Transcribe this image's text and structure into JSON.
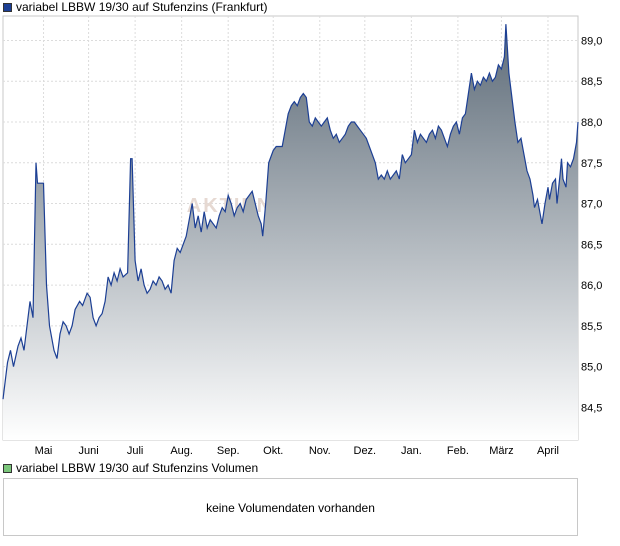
{
  "legend_price": {
    "label": "variabel LBBW 19/30 auf Stufenzins (Frankfurt)",
    "color": "#1c3f94"
  },
  "legend_volume": {
    "label": "variabel LBBW 19/30 auf Stufenzins Volumen",
    "color": "#7bc67b"
  },
  "volume_message": "keine Volumendaten vorhanden",
  "watermark": "AKTIEN",
  "colors": {
    "line": "#1c3f94",
    "fill_top": "#5d6b78",
    "fill_bottom": "#ffffff",
    "grid": "#dcdcdc",
    "frame": "#c8c8c8"
  },
  "chart_data": {
    "type": "area",
    "title": "variabel LBBW 19/30 auf Stufenzins (Frankfurt)",
    "xlabel": "",
    "ylabel": "",
    "ylim": [
      84.1,
      89.3
    ],
    "x_range": [
      0,
      383
    ],
    "grid": true,
    "y_axis_side": "right",
    "y_ticks": [
      {
        "v": 84.5,
        "label": "84,5"
      },
      {
        "v": 85.0,
        "label": "85,0"
      },
      {
        "v": 85.5,
        "label": "85,5"
      },
      {
        "v": 86.0,
        "label": "86,0"
      },
      {
        "v": 86.5,
        "label": "86,5"
      },
      {
        "v": 87.0,
        "label": "87,0"
      },
      {
        "v": 87.5,
        "label": "87,5"
      },
      {
        "v": 88.0,
        "label": "88,0"
      },
      {
        "v": 88.5,
        "label": "88,5"
      },
      {
        "v": 89.0,
        "label": "89,0"
      }
    ],
    "x_ticks": [
      {
        "x": 27,
        "label": "Mai"
      },
      {
        "x": 57,
        "label": "Juni"
      },
      {
        "x": 88,
        "label": "Juli"
      },
      {
        "x": 119,
        "label": "Aug."
      },
      {
        "x": 150,
        "label": "Sep."
      },
      {
        "x": 180,
        "label": "Okt."
      },
      {
        "x": 211,
        "label": "Nov."
      },
      {
        "x": 241,
        "label": "Dez."
      },
      {
        "x": 272,
        "label": "Jan."
      },
      {
        "x": 303,
        "label": "Feb."
      },
      {
        "x": 332,
        "label": "März"
      },
      {
        "x": 363,
        "label": "April"
      }
    ],
    "series": [
      {
        "name": "variabel LBBW 19/30 auf Stufenzins (Frankfurt)",
        "points": [
          [
            0,
            84.6
          ],
          [
            3,
            85.05
          ],
          [
            5,
            85.2
          ],
          [
            7,
            85.0
          ],
          [
            10,
            85.25
          ],
          [
            12,
            85.35
          ],
          [
            14,
            85.2
          ],
          [
            16,
            85.5
          ],
          [
            18,
            85.8
          ],
          [
            20,
            85.6
          ],
          [
            22,
            87.5
          ],
          [
            23,
            87.25
          ],
          [
            27,
            87.25
          ],
          [
            29,
            86.0
          ],
          [
            31,
            85.5
          ],
          [
            34,
            85.2
          ],
          [
            36,
            85.1
          ],
          [
            38,
            85.4
          ],
          [
            40,
            85.55
          ],
          [
            42,
            85.5
          ],
          [
            44,
            85.4
          ],
          [
            46,
            85.5
          ],
          [
            48,
            85.7
          ],
          [
            51,
            85.8
          ],
          [
            53,
            85.75
          ],
          [
            56,
            85.9
          ],
          [
            58,
            85.85
          ],
          [
            60,
            85.6
          ],
          [
            62,
            85.5
          ],
          [
            64,
            85.6
          ],
          [
            66,
            85.65
          ],
          [
            68,
            85.8
          ],
          [
            70,
            86.1
          ],
          [
            72,
            86.0
          ],
          [
            74,
            86.15
          ],
          [
            76,
            86.05
          ],
          [
            78,
            86.2
          ],
          [
            80,
            86.1
          ],
          [
            83,
            86.15
          ],
          [
            85,
            87.55
          ],
          [
            86,
            87.55
          ],
          [
            88,
            86.3
          ],
          [
            90,
            86.05
          ],
          [
            92,
            86.2
          ],
          [
            94,
            86.0
          ],
          [
            96,
            85.9
          ],
          [
            98,
            85.95
          ],
          [
            100,
            86.05
          ],
          [
            102,
            86.0
          ],
          [
            104,
            86.1
          ],
          [
            106,
            86.05
          ],
          [
            108,
            85.95
          ],
          [
            110,
            86.0
          ],
          [
            112,
            85.9
          ],
          [
            114,
            86.3
          ],
          [
            116,
            86.45
          ],
          [
            118,
            86.4
          ],
          [
            120,
            86.5
          ],
          [
            122,
            86.6
          ],
          [
            124,
            86.8
          ],
          [
            126,
            87.0
          ],
          [
            128,
            86.7
          ],
          [
            130,
            86.85
          ],
          [
            132,
            86.65
          ],
          [
            134,
            86.9
          ],
          [
            136,
            86.7
          ],
          [
            138,
            86.8
          ],
          [
            140,
            86.75
          ],
          [
            142,
            86.7
          ],
          [
            144,
            86.85
          ],
          [
            146,
            86.95
          ],
          [
            148,
            86.9
          ],
          [
            150,
            87.1
          ],
          [
            152,
            87.0
          ],
          [
            154,
            86.85
          ],
          [
            156,
            86.95
          ],
          [
            158,
            87.0
          ],
          [
            160,
            86.9
          ],
          [
            162,
            87.05
          ],
          [
            164,
            87.1
          ],
          [
            166,
            87.15
          ],
          [
            168,
            87.0
          ],
          [
            170,
            86.85
          ],
          [
            172,
            86.75
          ],
          [
            173,
            86.6
          ],
          [
            175,
            87.0
          ],
          [
            177,
            87.5
          ],
          [
            180,
            87.65
          ],
          [
            182,
            87.7
          ],
          [
            184,
            87.7
          ],
          [
            186,
            87.7
          ],
          [
            188,
            87.9
          ],
          [
            190,
            88.1
          ],
          [
            192,
            88.2
          ],
          [
            194,
            88.25
          ],
          [
            196,
            88.2
          ],
          [
            198,
            88.3
          ],
          [
            200,
            88.35
          ],
          [
            202,
            88.3
          ],
          [
            204,
            88.0
          ],
          [
            206,
            87.95
          ],
          [
            208,
            88.05
          ],
          [
            210,
            88.0
          ],
          [
            212,
            87.95
          ],
          [
            214,
            88.0
          ],
          [
            216,
            88.05
          ],
          [
            218,
            87.9
          ],
          [
            220,
            87.8
          ],
          [
            222,
            87.85
          ],
          [
            224,
            87.75
          ],
          [
            226,
            87.8
          ],
          [
            228,
            87.85
          ],
          [
            230,
            87.95
          ],
          [
            232,
            88.0
          ],
          [
            234,
            88.0
          ],
          [
            236,
            87.95
          ],
          [
            238,
            87.9
          ],
          [
            240,
            87.85
          ],
          [
            242,
            87.8
          ],
          [
            244,
            87.7
          ],
          [
            246,
            87.6
          ],
          [
            248,
            87.5
          ],
          [
            250,
            87.3
          ],
          [
            252,
            87.35
          ],
          [
            254,
            87.3
          ],
          [
            256,
            87.4
          ],
          [
            258,
            87.3
          ],
          [
            260,
            87.35
          ],
          [
            262,
            87.4
          ],
          [
            264,
            87.3
          ],
          [
            266,
            87.6
          ],
          [
            268,
            87.5
          ],
          [
            270,
            87.55
          ],
          [
            272,
            87.6
          ],
          [
            274,
            87.9
          ],
          [
            276,
            87.75
          ],
          [
            278,
            87.85
          ],
          [
            280,
            87.8
          ],
          [
            282,
            87.75
          ],
          [
            284,
            87.85
          ],
          [
            286,
            87.9
          ],
          [
            288,
            87.8
          ],
          [
            290,
            87.95
          ],
          [
            292,
            87.9
          ],
          [
            294,
            87.8
          ],
          [
            296,
            87.7
          ],
          [
            298,
            87.85
          ],
          [
            300,
            87.95
          ],
          [
            302,
            88.0
          ],
          [
            304,
            87.85
          ],
          [
            306,
            88.05
          ],
          [
            308,
            88.1
          ],
          [
            310,
            88.35
          ],
          [
            312,
            88.6
          ],
          [
            314,
            88.4
          ],
          [
            316,
            88.5
          ],
          [
            318,
            88.45
          ],
          [
            320,
            88.55
          ],
          [
            322,
            88.5
          ],
          [
            324,
            88.6
          ],
          [
            326,
            88.5
          ],
          [
            328,
            88.55
          ],
          [
            330,
            88.7
          ],
          [
            332,
            88.65
          ],
          [
            334,
            88.8
          ],
          [
            335,
            89.2
          ],
          [
            337,
            88.6
          ],
          [
            339,
            88.3
          ],
          [
            341,
            88.0
          ],
          [
            343,
            87.75
          ],
          [
            345,
            87.8
          ],
          [
            347,
            87.6
          ],
          [
            349,
            87.4
          ],
          [
            351,
            87.3
          ],
          [
            353,
            87.1
          ],
          [
            354,
            86.95
          ],
          [
            356,
            87.05
          ],
          [
            358,
            86.85
          ],
          [
            359,
            86.75
          ],
          [
            361,
            87.0
          ],
          [
            363,
            87.2
          ],
          [
            364,
            87.05
          ],
          [
            366,
            87.25
          ],
          [
            368,
            87.3
          ],
          [
            369,
            87.0
          ],
          [
            371,
            87.35
          ],
          [
            372,
            87.55
          ],
          [
            373,
            87.3
          ],
          [
            375,
            87.2
          ],
          [
            376,
            87.5
          ],
          [
            378,
            87.45
          ],
          [
            380,
            87.55
          ],
          [
            382,
            87.75
          ],
          [
            383,
            88.0
          ]
        ]
      }
    ]
  }
}
